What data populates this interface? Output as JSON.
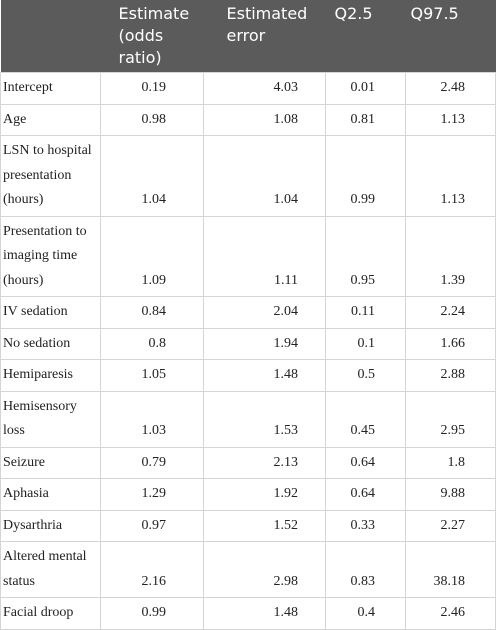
{
  "table": {
    "header": [
      "Estimate (odds ratio)",
      "Estimated error",
      "Q2.5",
      "Q97.5"
    ],
    "rows": [
      [
        "Intercept",
        "0.19",
        "4.03",
        "0.01",
        "2.48"
      ],
      [
        "Age",
        "0.98",
        "1.08",
        "0.81",
        "1.13"
      ],
      [
        "LSN to hospital presentation (hours)",
        "1.04",
        "1.04",
        "0.99",
        "1.13"
      ],
      [
        "Presentation to imaging time (hours)",
        "1.09",
        "1.11",
        "0.95",
        "1.39"
      ],
      [
        "IV sedation",
        "0.84",
        "2.04",
        "0.11",
        "2.24"
      ],
      [
        "No sedation",
        "0.8",
        "1.94",
        "0.1",
        "1.66"
      ],
      [
        "Hemiparesis",
        "1.05",
        "1.48",
        "0.5",
        "2.88"
      ],
      [
        "Hemisensory loss",
        "1.03",
        "1.53",
        "0.45",
        "2.95"
      ],
      [
        "Seizure",
        "0.79",
        "2.13",
        "0.64",
        "1.8"
      ],
      [
        "Aphasia",
        "1.29",
        "1.92",
        "0.64",
        "9.88"
      ],
      [
        "Dysarthria",
        "0.97",
        "1.52",
        "0.33",
        "2.27"
      ],
      [
        "Altered mental status",
        "2.16",
        "2.98",
        "0.83",
        "38.18"
      ],
      [
        "Facial droop",
        "0.99",
        "1.48",
        "0.4",
        "2.46"
      ]
    ]
  }
}
